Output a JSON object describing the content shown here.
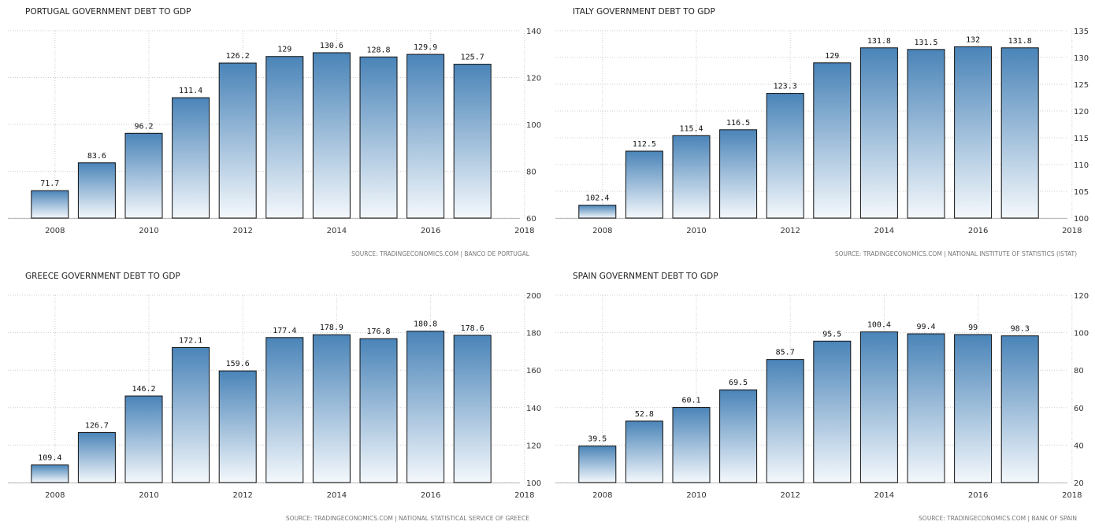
{
  "chart_data": [
    {
      "type": "bar",
      "title": "PORTUGAL GOVERNMENT DEBT TO GDP",
      "source": "SOURCE: TRADINGECONOMICS.COM | BANCO DE PORTUGAL",
      "categories": [
        "2008",
        "2009",
        "2010",
        "2011",
        "2012",
        "2013",
        "2014",
        "2015",
        "2016",
        "2017"
      ],
      "values": [
        71.7,
        83.6,
        96.2,
        111.4,
        126.2,
        129,
        130.6,
        128.8,
        129.9,
        125.7
      ],
      "value_labels": [
        "71.7",
        "83.6",
        "96.2",
        "111.4",
        "126.2",
        "129",
        "130.6",
        "128.8",
        "129.9",
        "125.7"
      ],
      "xticks": [
        "2008",
        "2010",
        "2012",
        "2014",
        "2016",
        "2018"
      ],
      "yticks": [
        60,
        80,
        100,
        120,
        140
      ],
      "ylim": [
        60,
        140
      ],
      "grid": true,
      "yaxis_position": "right",
      "xlabel": "",
      "ylabel": ""
    },
    {
      "type": "bar",
      "title": "ITALY GOVERNMENT DEBT TO GDP",
      "source": "SOURCE: TRADINGECONOMICS.COM | NATIONAL INSTITUTE OF STATISTICS (ISTAT)",
      "categories": [
        "2008",
        "2009",
        "2010",
        "2011",
        "2012",
        "2013",
        "2014",
        "2015",
        "2016",
        "2017"
      ],
      "values": [
        102.4,
        112.5,
        115.4,
        116.5,
        123.3,
        129,
        131.8,
        131.5,
        132,
        131.8
      ],
      "value_labels": [
        "102.4",
        "112.5",
        "115.4",
        "116.5",
        "123.3",
        "129",
        "131.8",
        "131.5",
        "132",
        "131.8"
      ],
      "xticks": [
        "2008",
        "2010",
        "2012",
        "2014",
        "2016",
        "2018"
      ],
      "yticks": [
        100,
        105,
        110,
        115,
        120,
        125,
        130,
        135
      ],
      "ylim": [
        100,
        135
      ],
      "grid": true,
      "yaxis_position": "right",
      "xlabel": "",
      "ylabel": ""
    },
    {
      "type": "bar",
      "title": "GREECE GOVERNMENT DEBT TO GDP",
      "source": "SOURCE: TRADINGECONOMICS.COM | NATIONAL STATISTICAL SERVICE OF GREECE",
      "categories": [
        "2008",
        "2009",
        "2010",
        "2011",
        "2012",
        "2013",
        "2014",
        "2015",
        "2016",
        "2017"
      ],
      "values": [
        109.4,
        126.7,
        146.2,
        172.1,
        159.6,
        177.4,
        178.9,
        176.8,
        180.8,
        178.6
      ],
      "value_labels": [
        "109.4",
        "126.7",
        "146.2",
        "172.1",
        "159.6",
        "177.4",
        "178.9",
        "176.8",
        "180.8",
        "178.6"
      ],
      "xticks": [
        "2008",
        "2010",
        "2012",
        "2014",
        "2016",
        "2018"
      ],
      "yticks": [
        100,
        120,
        140,
        160,
        180,
        200
      ],
      "ylim": [
        100,
        200
      ],
      "grid": true,
      "yaxis_position": "right",
      "xlabel": "",
      "ylabel": ""
    },
    {
      "type": "bar",
      "title": "SPAIN GOVERNMENT DEBT TO GDP",
      "source": "SOURCE: TRADINGECONOMICS.COM | BANK OF SPAIN",
      "categories": [
        "2008",
        "2009",
        "2010",
        "2011",
        "2012",
        "2013",
        "2014",
        "2015",
        "2016",
        "2017"
      ],
      "values": [
        39.5,
        52.8,
        60.1,
        69.5,
        85.7,
        95.5,
        100.4,
        99.4,
        99,
        98.3
      ],
      "value_labels": [
        "39.5",
        "52.8",
        "60.1",
        "69.5",
        "85.7",
        "95.5",
        "100.4",
        "99.4",
        "99",
        "98.3"
      ],
      "xticks": [
        "2008",
        "2010",
        "2012",
        "2014",
        "2016",
        "2018"
      ],
      "yticks": [
        20,
        40,
        60,
        80,
        100,
        120
      ],
      "ylim": [
        20,
        120
      ],
      "grid": true,
      "yaxis_position": "right",
      "xlabel": "",
      "ylabel": ""
    }
  ],
  "colors": {
    "bar_top": "#4a84b8",
    "bar_bottom": "#f4f8fc",
    "bar_border": "#111111",
    "grid": "#cccccc",
    "text": "#222222"
  }
}
